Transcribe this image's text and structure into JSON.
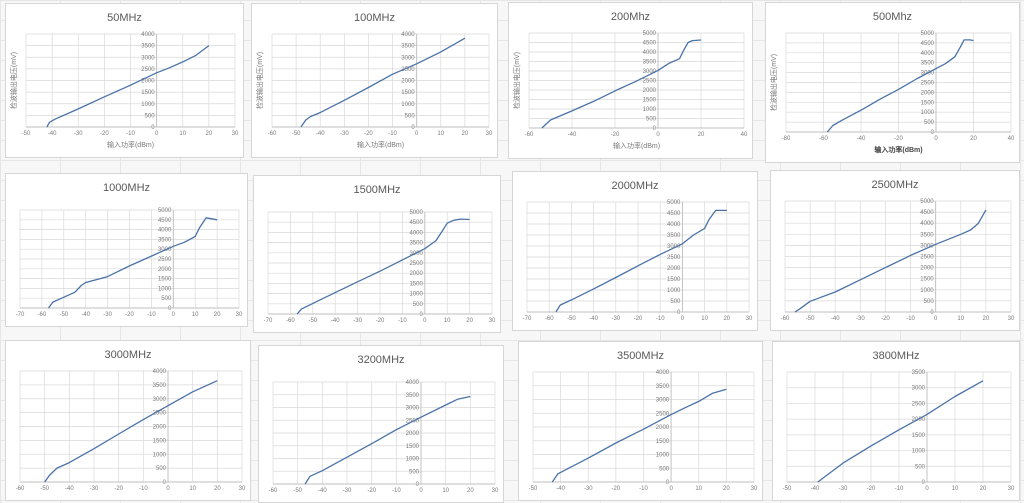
{
  "colors": {
    "line": "#4a72a8",
    "grid": "#d9d9d9",
    "axis": "#bfbfbf"
  },
  "chart_data": [
    {
      "type": "line",
      "title": "50MHz",
      "xlabel": "输入功率(dBm)",
      "ylabel": "检波输出电压(mV)",
      "xlim": [
        -50,
        30
      ],
      "ylim": [
        0,
        4000
      ],
      "xticks": [
        -50,
        -40,
        -30,
        -20,
        -10,
        0,
        10,
        20,
        30
      ],
      "yticks": [
        0,
        500,
        1000,
        1500,
        2000,
        2500,
        3000,
        3500,
        4000
      ],
      "grid": true,
      "x": [
        -42,
        -41,
        -39,
        -30,
        -20,
        -10,
        0,
        5,
        10,
        15,
        20
      ],
      "y": [
        0,
        200,
        330,
        780,
        1300,
        1800,
        2330,
        2550,
        2800,
        3080,
        3500
      ]
    },
    {
      "type": "line",
      "title": "100MHz",
      "xlabel": "输入功率(dBm)",
      "ylabel": "检波输出电压(mV)",
      "xlim": [
        -60,
        30
      ],
      "ylim": [
        0,
        4000
      ],
      "xticks": [
        -60,
        -50,
        -40,
        -30,
        -20,
        -10,
        0,
        10,
        20,
        30
      ],
      "yticks": [
        0,
        500,
        1000,
        1500,
        2000,
        2500,
        3000,
        3500,
        4000
      ],
      "grid": true,
      "x": [
        -48,
        -46,
        -44,
        -40,
        -30,
        -20,
        -10,
        0,
        10,
        20
      ],
      "y": [
        0,
        300,
        450,
        620,
        1150,
        1700,
        2270,
        2720,
        3230,
        3820
      ]
    },
    {
      "type": "line",
      "title": "200Mhz",
      "xlabel": "输入功率(dBm)",
      "ylabel": "检波输出电压(mV)",
      "xlim": [
        -60,
        40
      ],
      "ylim": [
        0,
        5000
      ],
      "xticks": [
        -60,
        -40,
        -20,
        0,
        20,
        40
      ],
      "yticks": [
        0,
        500,
        1000,
        1500,
        2000,
        2500,
        3000,
        3500,
        4000,
        4500,
        5000
      ],
      "grid": true,
      "x": [
        -54,
        -50,
        -40,
        -30,
        -20,
        -10,
        0,
        5,
        10,
        12,
        14,
        16,
        20
      ],
      "y": [
        0,
        420,
        900,
        1400,
        1950,
        2470,
        3030,
        3400,
        3650,
        4100,
        4500,
        4600,
        4630
      ]
    },
    {
      "type": "line",
      "title": "500Mhz",
      "xlabel": "输入功率(dBm)",
      "ylabel": "检波输出电压(mV)",
      "xlabel_bold": true,
      "xlim": [
        -80,
        40
      ],
      "ylim": [
        0,
        5000
      ],
      "xticks": [
        -80,
        -60,
        -40,
        -20,
        0,
        20,
        40
      ],
      "yticks": [
        0,
        500,
        1000,
        1500,
        2000,
        2500,
        3000,
        3500,
        4000,
        4500,
        5000
      ],
      "grid": true,
      "x": [
        -58,
        -55,
        -50,
        -40,
        -30,
        -20,
        -10,
        0,
        5,
        10,
        13,
        15,
        18,
        20
      ],
      "y": [
        0,
        330,
        600,
        1100,
        1650,
        2150,
        2700,
        3200,
        3450,
        3800,
        4300,
        4650,
        4650,
        4620
      ]
    },
    {
      "type": "line",
      "title": "1000MHz",
      "xlim": [
        -70,
        30
      ],
      "ylim": [
        0,
        5000
      ],
      "xticks": [
        -70,
        -60,
        -50,
        -40,
        -30,
        -20,
        -10,
        0,
        10,
        20,
        30
      ],
      "yticks": [
        0,
        500,
        1000,
        1500,
        2000,
        2500,
        3000,
        3500,
        4000,
        4500,
        5000
      ],
      "grid": true,
      "x": [
        -57,
        -55,
        -50,
        -45,
        -42,
        -40,
        -35,
        -30,
        -20,
        -10,
        0,
        5,
        10,
        12,
        15,
        20
      ],
      "y": [
        0,
        300,
        550,
        800,
        1150,
        1300,
        1450,
        1600,
        2150,
        2650,
        3150,
        3350,
        3650,
        4100,
        4600,
        4500
      ]
    },
    {
      "type": "line",
      "title": "1500MHz",
      "xlim": [
        -70,
        30
      ],
      "ylim": [
        0,
        5000
      ],
      "xticks": [
        -70,
        -60,
        -50,
        -40,
        -30,
        -20,
        -10,
        0,
        10,
        20,
        30
      ],
      "yticks": [
        0,
        500,
        1000,
        1500,
        2000,
        2500,
        3000,
        3500,
        4000,
        4500,
        5000
      ],
      "grid": true,
      "x": [
        -57,
        -55,
        -50,
        -40,
        -30,
        -20,
        -10,
        0,
        5,
        8,
        10,
        13,
        16,
        20
      ],
      "y": [
        0,
        250,
        520,
        1050,
        1580,
        2100,
        2650,
        3200,
        3600,
        4100,
        4450,
        4600,
        4650,
        4630
      ]
    },
    {
      "type": "line",
      "title": "2000MHz",
      "xlim": [
        -70,
        30
      ],
      "ylim": [
        0,
        5000
      ],
      "xticks": [
        -70,
        -60,
        -50,
        -40,
        -30,
        -20,
        -10,
        0,
        10,
        20,
        30
      ],
      "yticks": [
        0,
        500,
        1000,
        1500,
        2000,
        2500,
        3000,
        3500,
        4000,
        4500,
        5000
      ],
      "grid": true,
      "x": [
        -57,
        -55,
        -50,
        -40,
        -30,
        -20,
        -10,
        0,
        5,
        10,
        12,
        15,
        20
      ],
      "y": [
        0,
        320,
        550,
        1050,
        1570,
        2100,
        2620,
        3100,
        3500,
        3800,
        4200,
        4620,
        4620
      ]
    },
    {
      "type": "line",
      "title": "2500MHz",
      "xlim": [
        -60,
        30
      ],
      "ylim": [
        0,
        5000
      ],
      "xticks": [
        -60,
        -50,
        -40,
        -30,
        -20,
        -10,
        0,
        10,
        20,
        30
      ],
      "yticks": [
        0,
        500,
        1000,
        1500,
        2000,
        2500,
        3000,
        3500,
        4000,
        4500,
        5000
      ],
      "grid": true,
      "x": [
        -56,
        -54,
        -50,
        -40,
        -30,
        -20,
        -10,
        0,
        10,
        14,
        17,
        20
      ],
      "y": [
        0,
        150,
        480,
        900,
        1450,
        2000,
        2550,
        3050,
        3500,
        3700,
        4000,
        4600
      ]
    },
    {
      "type": "line",
      "title": "3000MHz",
      "xlim": [
        -60,
        30
      ],
      "ylim": [
        0,
        4000
      ],
      "xticks": [
        -60,
        -50,
        -40,
        -30,
        -20,
        -10,
        0,
        10,
        20,
        30
      ],
      "yticks": [
        0,
        500,
        1000,
        1500,
        2000,
        2500,
        3000,
        3500,
        4000
      ],
      "grid": true,
      "x": [
        -50,
        -48,
        -45,
        -40,
        -30,
        -20,
        -10,
        0,
        10,
        20
      ],
      "y": [
        0,
        250,
        500,
        700,
        1200,
        1730,
        2250,
        2750,
        3250,
        3650
      ]
    },
    {
      "type": "line",
      "title": "3200MHz",
      "xlim": [
        -60,
        30
      ],
      "ylim": [
        0,
        4000
      ],
      "xticks": [
        -60,
        -50,
        -40,
        -30,
        -20,
        -10,
        0,
        10,
        20,
        30
      ],
      "yticks": [
        0,
        500,
        1000,
        1500,
        2000,
        2500,
        3000,
        3500,
        4000
      ],
      "grid": true,
      "x": [
        -47,
        -45,
        -40,
        -30,
        -20,
        -10,
        0,
        10,
        15,
        20
      ],
      "y": [
        0,
        300,
        520,
        1050,
        1580,
        2130,
        2620,
        3100,
        3330,
        3430
      ]
    },
    {
      "type": "line",
      "title": "3500MHz",
      "xlim": [
        -50,
        30
      ],
      "ylim": [
        0,
        4000
      ],
      "xticks": [
        -50,
        -40,
        -30,
        -20,
        -10,
        0,
        10,
        20,
        30
      ],
      "yticks": [
        0,
        500,
        1000,
        1500,
        2000,
        2500,
        3000,
        3500,
        4000
      ],
      "grid": true,
      "x": [
        -43,
        -41,
        -38,
        -30,
        -20,
        -10,
        0,
        5,
        10,
        15,
        20
      ],
      "y": [
        0,
        300,
        450,
        870,
        1420,
        1920,
        2450,
        2700,
        2930,
        3230,
        3370
      ]
    },
    {
      "type": "line",
      "title": "3800MHz",
      "xlim": [
        -50,
        30
      ],
      "ylim": [
        0,
        3500
      ],
      "xticks": [
        -50,
        -40,
        -30,
        -20,
        -10,
        0,
        10,
        20,
        30
      ],
      "yticks": [
        0,
        500,
        1000,
        1500,
        2000,
        2500,
        3000,
        3500
      ],
      "grid": true,
      "x": [
        -39,
        -30,
        -20,
        -10,
        0,
        10,
        20
      ],
      "y": [
        0,
        600,
        1150,
        1660,
        2150,
        2720,
        3220
      ]
    }
  ]
}
